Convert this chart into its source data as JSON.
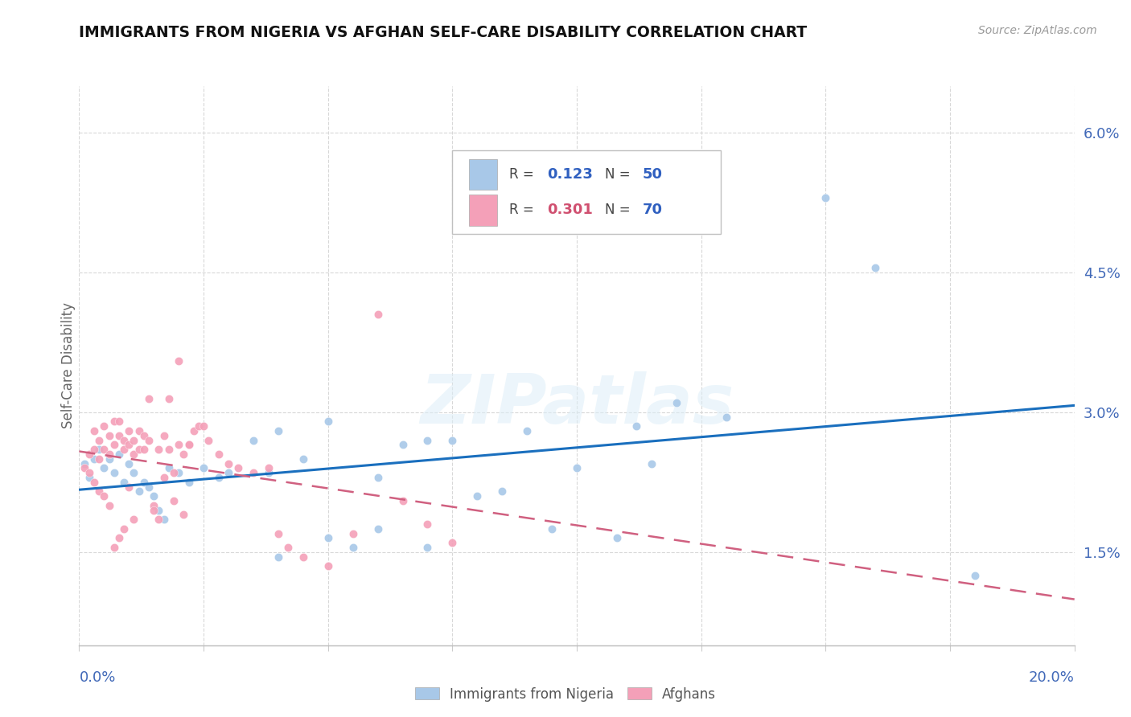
{
  "title": "IMMIGRANTS FROM NIGERIA VS AFGHAN SELF-CARE DISABILITY CORRELATION CHART",
  "source": "Source: ZipAtlas.com",
  "ylabel": "Self-Care Disability",
  "ytick_labels": [
    "1.5%",
    "3.0%",
    "4.5%",
    "6.0%"
  ],
  "ytick_values": [
    0.015,
    0.03,
    0.045,
    0.06
  ],
  "xlim": [
    0.0,
    0.2
  ],
  "ylim": [
    0.005,
    0.065
  ],
  "nigeria_color": "#a8c8e8",
  "afghan_color": "#f4a0b8",
  "nigeria_line_color": "#1a6fbe",
  "afghan_line_color": "#d06080",
  "watermark": "ZIPatlas",
  "R_nigeria": 0.123,
  "N_nigeria": 50,
  "R_afghan": 0.301,
  "N_afghan": 70,
  "nigeria_x": [
    0.001,
    0.002,
    0.003,
    0.004,
    0.005,
    0.006,
    0.007,
    0.008,
    0.009,
    0.01,
    0.011,
    0.012,
    0.013,
    0.014,
    0.015,
    0.016,
    0.017,
    0.018,
    0.02,
    0.022,
    0.025,
    0.028,
    0.03,
    0.035,
    0.038,
    0.04,
    0.045,
    0.05,
    0.055,
    0.06,
    0.065,
    0.07,
    0.075,
    0.08,
    0.085,
    0.09,
    0.095,
    0.1,
    0.108,
    0.112,
    0.115,
    0.12,
    0.13,
    0.15,
    0.16,
    0.18,
    0.04,
    0.05,
    0.06,
    0.07
  ],
  "nigeria_y": [
    0.0245,
    0.023,
    0.025,
    0.026,
    0.024,
    0.025,
    0.0235,
    0.0255,
    0.0225,
    0.0245,
    0.0235,
    0.0215,
    0.0225,
    0.022,
    0.021,
    0.0195,
    0.0185,
    0.024,
    0.0235,
    0.0225,
    0.024,
    0.023,
    0.0235,
    0.027,
    0.0235,
    0.028,
    0.025,
    0.029,
    0.0155,
    0.0175,
    0.0265,
    0.0155,
    0.027,
    0.021,
    0.0215,
    0.028,
    0.0175,
    0.024,
    0.0165,
    0.0285,
    0.0245,
    0.031,
    0.0295,
    0.053,
    0.0455,
    0.0125,
    0.0145,
    0.0165,
    0.023,
    0.027
  ],
  "afghan_x": [
    0.001,
    0.002,
    0.003,
    0.003,
    0.004,
    0.004,
    0.005,
    0.005,
    0.006,
    0.006,
    0.007,
    0.007,
    0.008,
    0.008,
    0.009,
    0.009,
    0.01,
    0.01,
    0.011,
    0.011,
    0.012,
    0.012,
    0.013,
    0.013,
    0.014,
    0.014,
    0.015,
    0.015,
    0.016,
    0.016,
    0.017,
    0.017,
    0.018,
    0.018,
    0.019,
    0.019,
    0.02,
    0.02,
    0.021,
    0.021,
    0.022,
    0.022,
    0.023,
    0.024,
    0.025,
    0.026,
    0.028,
    0.03,
    0.032,
    0.035,
    0.038,
    0.04,
    0.042,
    0.045,
    0.05,
    0.055,
    0.06,
    0.065,
    0.07,
    0.075,
    0.002,
    0.003,
    0.004,
    0.005,
    0.006,
    0.007,
    0.008,
    0.009,
    0.01,
    0.011
  ],
  "afghan_y": [
    0.024,
    0.0255,
    0.028,
    0.026,
    0.027,
    0.025,
    0.0285,
    0.026,
    0.0275,
    0.0255,
    0.029,
    0.0265,
    0.0275,
    0.029,
    0.026,
    0.027,
    0.0265,
    0.028,
    0.027,
    0.0255,
    0.028,
    0.026,
    0.0275,
    0.026,
    0.0315,
    0.027,
    0.02,
    0.0195,
    0.0185,
    0.026,
    0.023,
    0.0275,
    0.0315,
    0.026,
    0.0235,
    0.0205,
    0.0355,
    0.0265,
    0.0255,
    0.019,
    0.0265,
    0.0265,
    0.028,
    0.0285,
    0.0285,
    0.027,
    0.0255,
    0.0245,
    0.024,
    0.0235,
    0.024,
    0.017,
    0.0155,
    0.0145,
    0.0135,
    0.017,
    0.0405,
    0.0205,
    0.018,
    0.016,
    0.0235,
    0.0225,
    0.0215,
    0.021,
    0.02,
    0.0155,
    0.0165,
    0.0175,
    0.022,
    0.0185
  ]
}
